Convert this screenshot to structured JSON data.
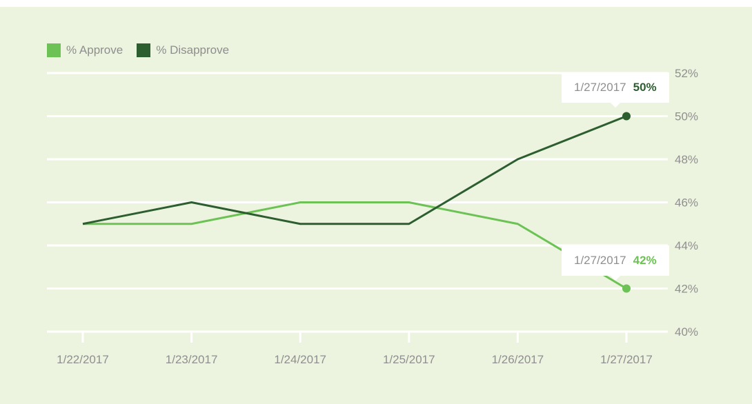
{
  "chart_data": {
    "type": "line",
    "categories": [
      "1/22/2017",
      "1/23/2017",
      "1/24/2017",
      "1/25/2017",
      "1/26/2017",
      "1/27/2017"
    ],
    "series": [
      {
        "name": "% Approve",
        "values": [
          45,
          45,
          46,
          46,
          45,
          42
        ],
        "color": "#6cc254"
      },
      {
        "name": "% Disapprove",
        "values": [
          45,
          46,
          45,
          45,
          48,
          50
        ],
        "color": "#2c5e30"
      }
    ],
    "y_ticks": [
      "40%",
      "42%",
      "44%",
      "46%",
      "48%",
      "50%",
      "52%"
    ],
    "y_tick_values": [
      40,
      42,
      44,
      46,
      48,
      50,
      52
    ],
    "ylim": [
      40,
      52
    ],
    "grid": true,
    "legend": "top-left",
    "tooltips": [
      {
        "date": "1/27/2017",
        "value": "50%",
        "series": "% Disapprove"
      },
      {
        "date": "1/27/2017",
        "value": "42%",
        "series": "% Approve"
      }
    ]
  }
}
